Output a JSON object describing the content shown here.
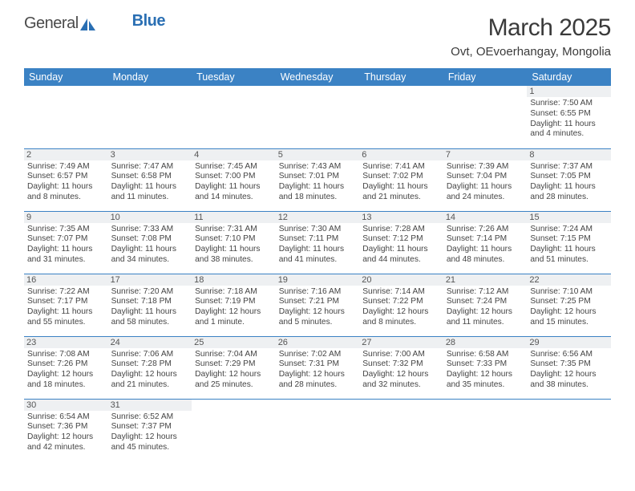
{
  "logo": {
    "text1": "General",
    "text2": "Blue"
  },
  "title": "March 2025",
  "location": "Ovt, OEvoerhangay, Mongolia",
  "colors": {
    "header_bg": "#3b82c4",
    "header_fg": "#ffffff",
    "daynum_bg": "#eef0f2",
    "border": "#3b82c4",
    "logo_accent": "#2a6fb3"
  },
  "weekdays": [
    "Sunday",
    "Monday",
    "Tuesday",
    "Wednesday",
    "Thursday",
    "Friday",
    "Saturday"
  ],
  "weeks": [
    [
      null,
      null,
      null,
      null,
      null,
      null,
      {
        "n": "1",
        "sr": "Sunrise: 7:50 AM",
        "ss": "Sunset: 6:55 PM",
        "dl": "Daylight: 11 hours and 4 minutes."
      }
    ],
    [
      {
        "n": "2",
        "sr": "Sunrise: 7:49 AM",
        "ss": "Sunset: 6:57 PM",
        "dl": "Daylight: 11 hours and 8 minutes."
      },
      {
        "n": "3",
        "sr": "Sunrise: 7:47 AM",
        "ss": "Sunset: 6:58 PM",
        "dl": "Daylight: 11 hours and 11 minutes."
      },
      {
        "n": "4",
        "sr": "Sunrise: 7:45 AM",
        "ss": "Sunset: 7:00 PM",
        "dl": "Daylight: 11 hours and 14 minutes."
      },
      {
        "n": "5",
        "sr": "Sunrise: 7:43 AM",
        "ss": "Sunset: 7:01 PM",
        "dl": "Daylight: 11 hours and 18 minutes."
      },
      {
        "n": "6",
        "sr": "Sunrise: 7:41 AM",
        "ss": "Sunset: 7:02 PM",
        "dl": "Daylight: 11 hours and 21 minutes."
      },
      {
        "n": "7",
        "sr": "Sunrise: 7:39 AM",
        "ss": "Sunset: 7:04 PM",
        "dl": "Daylight: 11 hours and 24 minutes."
      },
      {
        "n": "8",
        "sr": "Sunrise: 7:37 AM",
        "ss": "Sunset: 7:05 PM",
        "dl": "Daylight: 11 hours and 28 minutes."
      }
    ],
    [
      {
        "n": "9",
        "sr": "Sunrise: 7:35 AM",
        "ss": "Sunset: 7:07 PM",
        "dl": "Daylight: 11 hours and 31 minutes."
      },
      {
        "n": "10",
        "sr": "Sunrise: 7:33 AM",
        "ss": "Sunset: 7:08 PM",
        "dl": "Daylight: 11 hours and 34 minutes."
      },
      {
        "n": "11",
        "sr": "Sunrise: 7:31 AM",
        "ss": "Sunset: 7:10 PM",
        "dl": "Daylight: 11 hours and 38 minutes."
      },
      {
        "n": "12",
        "sr": "Sunrise: 7:30 AM",
        "ss": "Sunset: 7:11 PM",
        "dl": "Daylight: 11 hours and 41 minutes."
      },
      {
        "n": "13",
        "sr": "Sunrise: 7:28 AM",
        "ss": "Sunset: 7:12 PM",
        "dl": "Daylight: 11 hours and 44 minutes."
      },
      {
        "n": "14",
        "sr": "Sunrise: 7:26 AM",
        "ss": "Sunset: 7:14 PM",
        "dl": "Daylight: 11 hours and 48 minutes."
      },
      {
        "n": "15",
        "sr": "Sunrise: 7:24 AM",
        "ss": "Sunset: 7:15 PM",
        "dl": "Daylight: 11 hours and 51 minutes."
      }
    ],
    [
      {
        "n": "16",
        "sr": "Sunrise: 7:22 AM",
        "ss": "Sunset: 7:17 PM",
        "dl": "Daylight: 11 hours and 55 minutes."
      },
      {
        "n": "17",
        "sr": "Sunrise: 7:20 AM",
        "ss": "Sunset: 7:18 PM",
        "dl": "Daylight: 11 hours and 58 minutes."
      },
      {
        "n": "18",
        "sr": "Sunrise: 7:18 AM",
        "ss": "Sunset: 7:19 PM",
        "dl": "Daylight: 12 hours and 1 minute."
      },
      {
        "n": "19",
        "sr": "Sunrise: 7:16 AM",
        "ss": "Sunset: 7:21 PM",
        "dl": "Daylight: 12 hours and 5 minutes."
      },
      {
        "n": "20",
        "sr": "Sunrise: 7:14 AM",
        "ss": "Sunset: 7:22 PM",
        "dl": "Daylight: 12 hours and 8 minutes."
      },
      {
        "n": "21",
        "sr": "Sunrise: 7:12 AM",
        "ss": "Sunset: 7:24 PM",
        "dl": "Daylight: 12 hours and 11 minutes."
      },
      {
        "n": "22",
        "sr": "Sunrise: 7:10 AM",
        "ss": "Sunset: 7:25 PM",
        "dl": "Daylight: 12 hours and 15 minutes."
      }
    ],
    [
      {
        "n": "23",
        "sr": "Sunrise: 7:08 AM",
        "ss": "Sunset: 7:26 PM",
        "dl": "Daylight: 12 hours and 18 minutes."
      },
      {
        "n": "24",
        "sr": "Sunrise: 7:06 AM",
        "ss": "Sunset: 7:28 PM",
        "dl": "Daylight: 12 hours and 21 minutes."
      },
      {
        "n": "25",
        "sr": "Sunrise: 7:04 AM",
        "ss": "Sunset: 7:29 PM",
        "dl": "Daylight: 12 hours and 25 minutes."
      },
      {
        "n": "26",
        "sr": "Sunrise: 7:02 AM",
        "ss": "Sunset: 7:31 PM",
        "dl": "Daylight: 12 hours and 28 minutes."
      },
      {
        "n": "27",
        "sr": "Sunrise: 7:00 AM",
        "ss": "Sunset: 7:32 PM",
        "dl": "Daylight: 12 hours and 32 minutes."
      },
      {
        "n": "28",
        "sr": "Sunrise: 6:58 AM",
        "ss": "Sunset: 7:33 PM",
        "dl": "Daylight: 12 hours and 35 minutes."
      },
      {
        "n": "29",
        "sr": "Sunrise: 6:56 AM",
        "ss": "Sunset: 7:35 PM",
        "dl": "Daylight: 12 hours and 38 minutes."
      }
    ],
    [
      {
        "n": "30",
        "sr": "Sunrise: 6:54 AM",
        "ss": "Sunset: 7:36 PM",
        "dl": "Daylight: 12 hours and 42 minutes."
      },
      {
        "n": "31",
        "sr": "Sunrise: 6:52 AM",
        "ss": "Sunset: 7:37 PM",
        "dl": "Daylight: 12 hours and 45 minutes."
      },
      null,
      null,
      null,
      null,
      null
    ]
  ]
}
